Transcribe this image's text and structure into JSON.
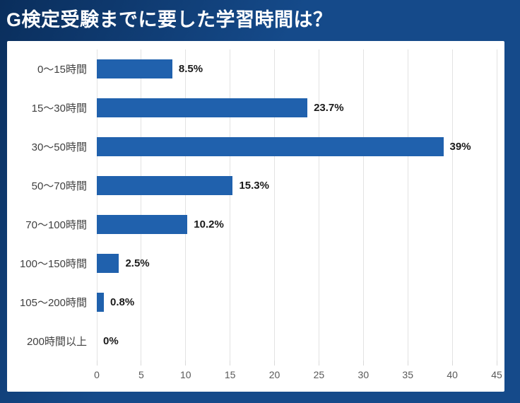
{
  "title": "G検定受験までに要した学習時間は？",
  "colors": {
    "background": "#154a8a",
    "background_dark_corner": "#0a2e5c",
    "panel": "#ffffff",
    "bar": "#2061ad",
    "gridline": "#e2e2e2",
    "title_text": "#ffffff",
    "category_text": "#404040",
    "value_text": "#1a1a1a",
    "tick_text": "#595959"
  },
  "chart_data": {
    "type": "bar",
    "orientation": "horizontal",
    "title": "G検定受験までに要した学習時間は？",
    "categories": [
      "0〜15時間",
      "15〜30時間",
      "30〜50時間",
      "50〜70時間",
      "70〜100時間",
      "100〜150時間",
      "105〜200時間",
      "200時間以上"
    ],
    "values": [
      8.5,
      23.7,
      39,
      15.3,
      10.2,
      2.5,
      0.8,
      0
    ],
    "value_labels": [
      "8.5%",
      "23.7%",
      "39%",
      "15.3%",
      "10.2%",
      "2.5%",
      "0.8%",
      "0%"
    ],
    "xlabel": "",
    "ylabel": "",
    "xlim": [
      0,
      45
    ],
    "x_ticks": [
      0,
      5,
      10,
      15,
      20,
      25,
      30,
      35,
      40,
      45
    ],
    "grid": true,
    "legend": false
  }
}
